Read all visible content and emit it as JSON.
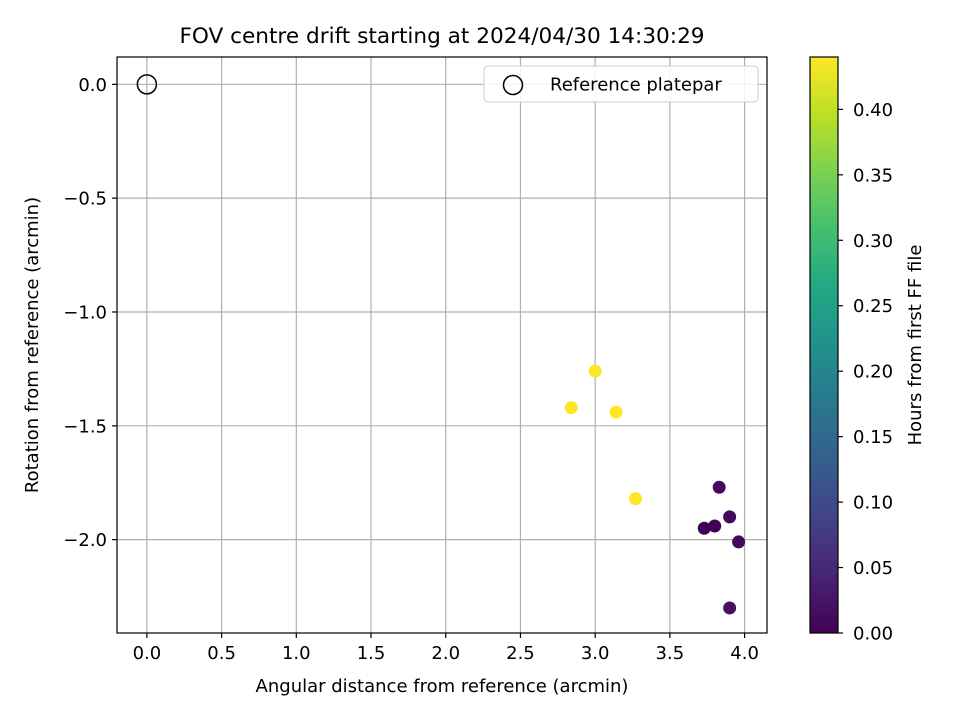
{
  "chart_data": {
    "type": "scatter",
    "title": "FOV centre drift starting at 2024/04/30 14:30:29",
    "xlabel": "Angular distance from reference (arcmin)",
    "ylabel": "Rotation from reference (arcmin)",
    "xlim": [
      -0.2,
      4.15
    ],
    "ylim": [
      -2.41,
      0.12
    ],
    "xticks": [
      "0.0",
      "0.5",
      "1.0",
      "1.5",
      "2.0",
      "2.5",
      "3.0",
      "3.5",
      "4.0"
    ],
    "xtick_values": [
      0.0,
      0.5,
      1.0,
      1.5,
      2.0,
      2.5,
      3.0,
      3.5,
      4.0
    ],
    "yticks": [
      "0.0",
      "−0.5",
      "−1.0",
      "−1.5",
      "−2.0"
    ],
    "ytick_values": [
      0.0,
      -0.5,
      -1.0,
      -1.5,
      -2.0
    ],
    "grid": true,
    "legend": {
      "location": "upper right",
      "entries": [
        "Reference platepar"
      ]
    },
    "reference_point": {
      "x": 0.0,
      "y": 0.0,
      "label": "Reference platepar"
    },
    "series": [
      {
        "points": [
          {
            "x": 3.73,
            "y": -1.95,
            "hours": 0.0
          },
          {
            "x": 3.8,
            "y": -1.94,
            "hours": 0.0
          },
          {
            "x": 3.83,
            "y": -1.77,
            "hours": 0.01
          },
          {
            "x": 3.9,
            "y": -1.9,
            "hours": 0.01
          },
          {
            "x": 3.96,
            "y": -2.01,
            "hours": 0.01
          },
          {
            "x": 3.9,
            "y": -2.3,
            "hours": 0.02
          },
          {
            "x": 2.84,
            "y": -1.42,
            "hours": 0.44
          },
          {
            "x": 3.0,
            "y": -1.26,
            "hours": 0.44
          },
          {
            "x": 3.14,
            "y": -1.44,
            "hours": 0.44
          },
          {
            "x": 3.27,
            "y": -1.82,
            "hours": 0.44
          }
        ]
      }
    ],
    "colorbar": {
      "label": "Hours from first FF file",
      "range": [
        0.0,
        0.44
      ],
      "colormap": "viridis",
      "ticks": [
        "0.00",
        "0.05",
        "0.10",
        "0.15",
        "0.20",
        "0.25",
        "0.30",
        "0.35",
        "0.40"
      ],
      "tick_values": [
        0.0,
        0.05,
        0.1,
        0.15,
        0.2,
        0.25,
        0.3,
        0.35,
        0.4
      ]
    }
  }
}
